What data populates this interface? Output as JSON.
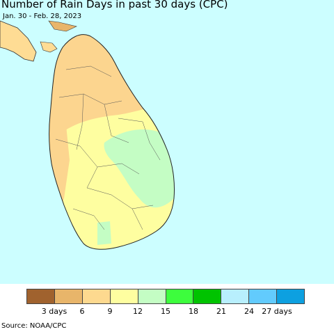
{
  "title": "Number of Rain Days in past 30 days (CPC)",
  "date_range": "Jan. 30 - Feb. 28, 2023",
  "source": "Source: NOAA/CPC",
  "colors": {
    "ocean": "#ccfeff",
    "land_outside": "#fedc94",
    "border": "#333333"
  },
  "legend": {
    "colors": [
      "#a0622e",
      "#e8b56a",
      "#fdd98f",
      "#fefea0",
      "#c4fdc4",
      "#3dfd3d",
      "#00c300",
      "#b8effd",
      "#62cbfd",
      "#0da0e0"
    ],
    "tick_labels": [
      "3 days",
      "6",
      "9",
      "12",
      "15",
      "18",
      "21",
      "24",
      "27 days"
    ]
  },
  "regions": [
    {
      "name": "dry-north-zone",
      "color": "#fcd58f",
      "value_range": "6-9 days"
    },
    {
      "name": "central-yellow-zone",
      "color": "#fefea0",
      "value_range": "9-12 days"
    },
    {
      "name": "east-green-zone",
      "color": "#c4fdc4",
      "value_range": "12-15 days"
    },
    {
      "name": "west-coast-strip",
      "color": "#fcd58f",
      "value_range": "6-9 days"
    }
  ]
}
